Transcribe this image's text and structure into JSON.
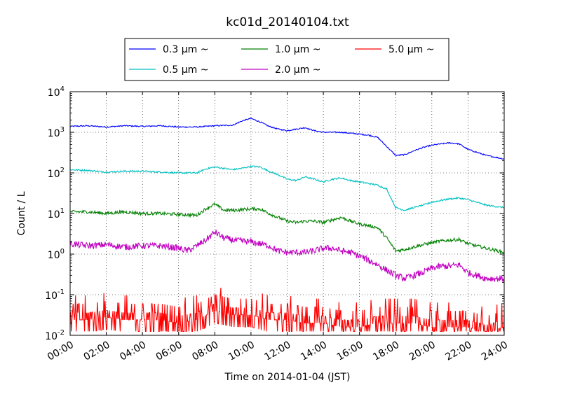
{
  "chart_data": {
    "type": "line",
    "title": "kc01d_20140104.txt",
    "xlabel": "Time on 2014-01-04 (JST)",
    "ylabel": "Count / L",
    "x_unit": "hours",
    "x_range": [
      0,
      24
    ],
    "xticks": [
      "00:00",
      "02:00",
      "04:00",
      "06:00",
      "08:00",
      "10:00",
      "12:00",
      "14:00",
      "16:00",
      "18:00",
      "20:00",
      "22:00",
      "24:00"
    ],
    "y_scale": "log",
    "ylim": [
      0.01,
      10000
    ],
    "yticks": [
      {
        "base": "10",
        "exp": "-2"
      },
      {
        "base": "10",
        "exp": "-1"
      },
      {
        "base": "10",
        "exp": "0"
      },
      {
        "base": "10",
        "exp": "1"
      },
      {
        "base": "10",
        "exp": "2"
      },
      {
        "base": "10",
        "exp": "3"
      },
      {
        "base": "10",
        "exp": "4"
      }
    ],
    "grid": true,
    "legend_position": "top-center",
    "series": [
      {
        "name": "0.3 μm ~",
        "color": "#0000ff",
        "x": [
          0,
          1,
          2,
          3,
          4,
          5,
          6,
          7,
          8,
          9,
          9.5,
          10,
          10.5,
          11,
          11.5,
          12,
          12.5,
          13,
          13.5,
          14,
          14.5,
          15,
          15.5,
          16,
          16.5,
          17,
          17.5,
          18,
          18.5,
          19,
          19.5,
          20,
          20.5,
          21,
          21.5,
          22,
          23,
          24
        ],
        "y": [
          1400,
          1450,
          1350,
          1450,
          1400,
          1450,
          1350,
          1350,
          1450,
          1500,
          1900,
          2200,
          1800,
          1400,
          1200,
          1100,
          1200,
          1300,
          1100,
          1000,
          1000,
          1000,
          950,
          900,
          850,
          750,
          450,
          270,
          280,
          350,
          420,
          480,
          520,
          550,
          520,
          380,
          270,
          220
        ]
      },
      {
        "name": "0.5 μm ~",
        "color": "#00c0c0",
        "x": [
          0,
          1,
          2,
          3,
          4,
          5,
          6,
          7,
          7.5,
          8,
          9,
          9.5,
          10,
          10.5,
          11,
          11.5,
          12,
          12.5,
          13,
          13.5,
          14,
          14.5,
          15,
          15.5,
          16,
          16.5,
          17,
          17.5,
          18,
          18.5,
          19,
          19.5,
          20,
          20.5,
          21,
          21.5,
          22,
          23,
          24
        ],
        "y": [
          120,
          115,
          105,
          110,
          110,
          105,
          100,
          100,
          125,
          140,
          120,
          130,
          145,
          140,
          110,
          90,
          70,
          65,
          80,
          70,
          60,
          70,
          75,
          65,
          60,
          55,
          50,
          40,
          14,
          12,
          14,
          16,
          19,
          21,
          23,
          24,
          22,
          16,
          14
        ]
      },
      {
        "name": "1.0 μm ~",
        "color": "#008000",
        "x": [
          0,
          1,
          2,
          3,
          4,
          5,
          6,
          7,
          7.5,
          8,
          8.5,
          9,
          10,
          10.5,
          11,
          11.5,
          12,
          12.5,
          13,
          13.5,
          14,
          14.5,
          15,
          15.5,
          16,
          16.5,
          17,
          17.5,
          18,
          18.5,
          19,
          19.5,
          20,
          20.5,
          21,
          21.5,
          22,
          23,
          24
        ],
        "y": [
          11,
          11,
          10,
          11,
          10,
          10,
          9.5,
          9,
          13,
          17,
          12,
          12,
          13,
          13,
          10,
          8,
          6.5,
          6,
          6.5,
          6.5,
          6,
          7,
          8,
          6.5,
          5.5,
          5,
          4.5,
          2.5,
          1.2,
          1.3,
          1.5,
          1.7,
          1.9,
          2.1,
          2.2,
          2.3,
          1.8,
          1.4,
          1.1
        ]
      },
      {
        "name": "2.0 μm ~",
        "color": "#c000c0",
        "x": [
          0,
          1,
          2,
          3,
          4,
          5,
          6,
          6.5,
          7,
          7.5,
          8,
          8.5,
          9,
          10,
          10.5,
          11,
          11.5,
          12,
          12.5,
          13,
          13.5,
          14,
          14.5,
          15,
          15.5,
          16,
          16.5,
          17,
          17.5,
          18,
          18.5,
          19,
          19.5,
          20,
          20.5,
          21,
          21.5,
          22,
          22.5,
          23,
          24
        ],
        "y": [
          1.8,
          1.6,
          1.7,
          1.5,
          1.6,
          1.6,
          1.4,
          1.2,
          1.6,
          2.2,
          3.5,
          2.5,
          2.2,
          2,
          1.8,
          1.6,
          1.2,
          1.1,
          1.1,
          1.1,
          1.2,
          1.4,
          1.4,
          1.2,
          1.1,
          0.9,
          0.7,
          0.55,
          0.4,
          0.3,
          0.25,
          0.3,
          0.35,
          0.45,
          0.5,
          0.5,
          0.55,
          0.35,
          0.3,
          0.25,
          0.25
        ]
      },
      {
        "name": "5.0 μm ~",
        "color": "#ff0000",
        "x": [
          0,
          1,
          2,
          3,
          4,
          5,
          6,
          7,
          8,
          9,
          10,
          11,
          12,
          13,
          14,
          15,
          16,
          17,
          18,
          19,
          20,
          21,
          22,
          23,
          24
        ],
        "y": [
          0.03,
          0.03,
          0.035,
          0.03,
          0.03,
          0.03,
          0.025,
          0.03,
          0.05,
          0.04,
          0.04,
          0.03,
          0.03,
          0.025,
          0.025,
          0.02,
          0.02,
          0.025,
          0.025,
          0.025,
          0.02,
          0.02,
          0.02,
          0.015,
          0.02
        ]
      }
    ]
  }
}
